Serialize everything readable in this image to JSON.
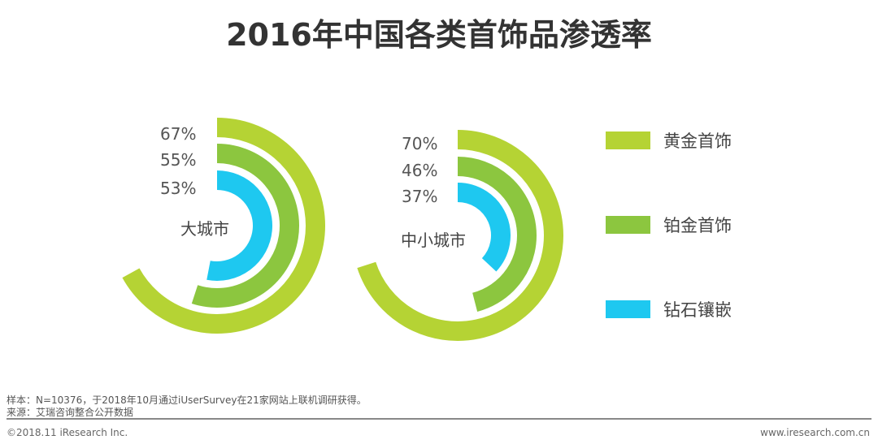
{
  "chart_data": {
    "type": "radial-bar",
    "title": "2016年中国各类首饰品渗透率",
    "legend": [
      "黄金首饰",
      "铂金首饰",
      "钻石镶嵌"
    ],
    "colors": [
      "#b5d334",
      "#8cc63f",
      "#1ec8f0"
    ],
    "groups": [
      {
        "name": "大城市",
        "values": [
          67,
          55,
          53
        ],
        "labels": [
          "67%",
          "55%",
          "53%"
        ]
      },
      {
        "name": "中小城市",
        "values": [
          70,
          46,
          37
        ],
        "labels": [
          "70%",
          "46%",
          "37%"
        ]
      }
    ]
  },
  "footer": {
    "sample": "样本：N=10376，于2018年10月通过iUserSurvey在21家网站上联机调研获得。",
    "source": "来源：艾瑞咨询整合公开数据",
    "copyright": "©2018.11 iResearch Inc.",
    "website": "www.iresearch.com.cn"
  }
}
